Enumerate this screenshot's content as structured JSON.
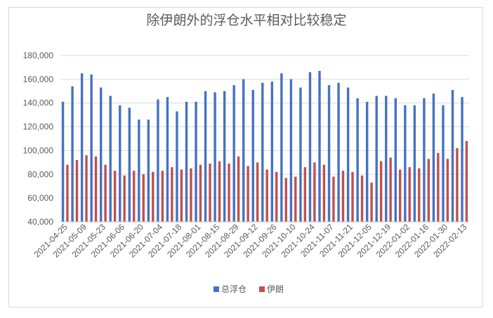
{
  "chart_data": {
    "type": "bar",
    "title": "除伊朗外的浮仓水平相对比较稳定",
    "xlabel": "",
    "ylabel": "",
    "ylim": [
      40000,
      180000
    ],
    "yticks": [
      "40,000",
      "60,000",
      "80,000",
      "100,000",
      "120,000",
      "140,000",
      "160,000",
      "180,000"
    ],
    "grid": true,
    "legend_position": "bottom",
    "tick_labels": [
      "2021-04-25",
      "2021-05-09",
      "2021-05-23",
      "2021-06-06",
      "2021-06-20",
      "2021-07-04",
      "2021-07-18",
      "2021-08-01",
      "2021-08-15",
      "2021-08-29",
      "2021-09-12",
      "2021-09-26",
      "2021-10-10",
      "2021-10-24",
      "2021-11-07",
      "2021-11-21",
      "2021-12-05",
      "2021-12-19",
      "2022-01-02",
      "2022-01-16",
      "2022-01-30",
      "2022-02-13"
    ],
    "categories": [
      "2021-04-25",
      "2021-05-02",
      "2021-05-09",
      "2021-05-16",
      "2021-05-23",
      "2021-05-30",
      "2021-06-06",
      "2021-06-13",
      "2021-06-20",
      "2021-06-27",
      "2021-07-04",
      "2021-07-11",
      "2021-07-18",
      "2021-07-25",
      "2021-08-01",
      "2021-08-08",
      "2021-08-15",
      "2021-08-22",
      "2021-08-29",
      "2021-09-05",
      "2021-09-12",
      "2021-09-19",
      "2021-09-26",
      "2021-10-03",
      "2021-10-10",
      "2021-10-17",
      "2021-10-24",
      "2021-10-31",
      "2021-11-07",
      "2021-11-14",
      "2021-11-21",
      "2021-11-28",
      "2021-12-05",
      "2021-12-12",
      "2021-12-19",
      "2021-12-26",
      "2022-01-02",
      "2022-01-09",
      "2022-01-16",
      "2022-01-23",
      "2022-01-30",
      "2022-02-06",
      "2022-02-13"
    ],
    "series": [
      {
        "name": "总浮仓",
        "color": "#4472c4",
        "values": [
          141000,
          154000,
          165000,
          164000,
          153000,
          146000,
          138000,
          136000,
          126000,
          126000,
          143000,
          145000,
          133000,
          141000,
          141000,
          150000,
          149000,
          150000,
          155000,
          160000,
          151000,
          157000,
          158000,
          165000,
          160000,
          153000,
          166000,
          167000,
          155000,
          157000,
          153000,
          144000,
          141000,
          146000,
          146000,
          144000,
          138000,
          138000,
          144000,
          148000,
          138000,
          151000,
          145000
        ]
      },
      {
        "name": "伊朗",
        "color": "#c0504d",
        "values": [
          88000,
          92000,
          96000,
          95000,
          88000,
          83000,
          79000,
          83000,
          80000,
          82000,
          83000,
          86000,
          84000,
          85000,
          88000,
          89000,
          91000,
          89000,
          95000,
          87000,
          90000,
          84000,
          82000,
          77000,
          78000,
          86000,
          90000,
          88000,
          78000,
          83000,
          82000,
          79000,
          73000,
          91000,
          94000,
          84000,
          86000,
          85000,
          93000,
          98000,
          93000,
          102000,
          108000
        ]
      }
    ]
  }
}
